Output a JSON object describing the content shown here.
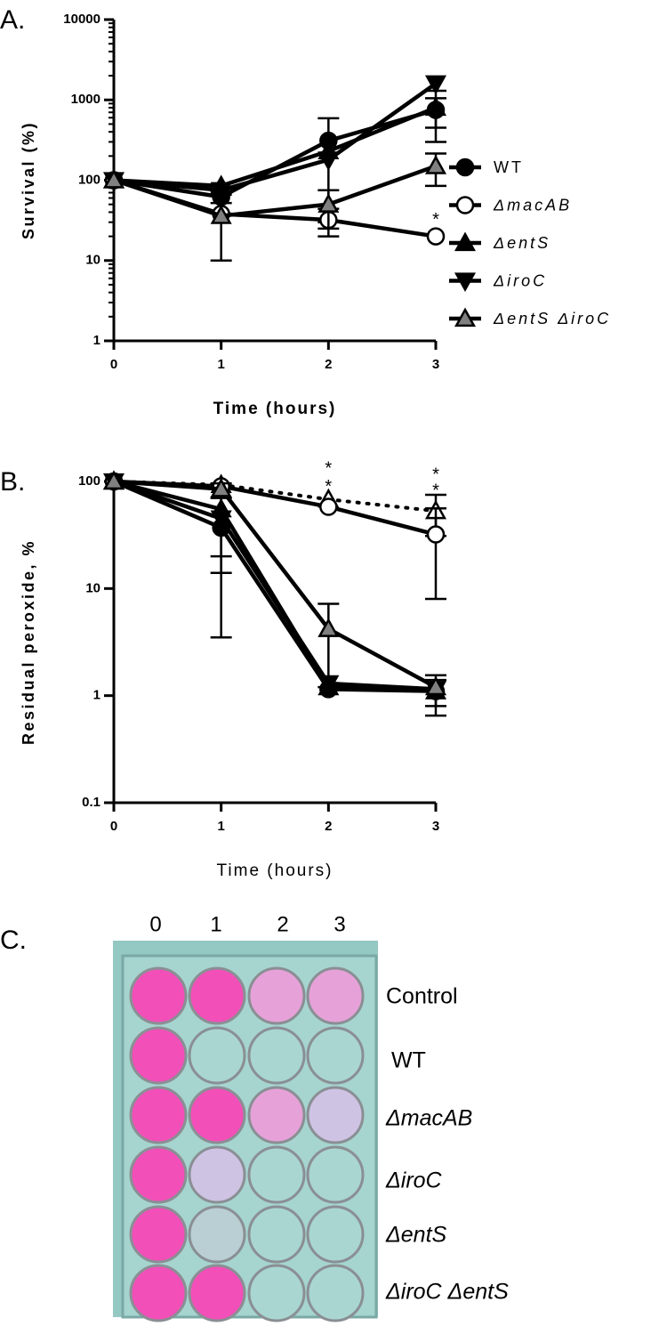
{
  "chart_data": [
    {
      "type": "line",
      "panel_label": "A.",
      "ylabel": "Survival (%)",
      "xlabel": "Time (hours)",
      "xlabel_bold": true,
      "log_y": true,
      "minor_ticks": true,
      "legend": "right",
      "x": [
        0,
        1,
        2,
        3
      ],
      "xlim": [
        0,
        3
      ],
      "xticks": [
        0,
        1,
        2,
        3
      ],
      "ylim": [
        1,
        10000
      ],
      "yticks": [
        1,
        10,
        100,
        1000,
        10000
      ],
      "series": [
        {
          "name": "WT",
          "color": "#000000",
          "marker": "circle",
          "marker_fill": "#000000",
          "values": [
            100,
            62,
            310,
            750
          ],
          "errors": [
            null,
            10,
            280,
            300
          ]
        },
        {
          "name": "ΔmacAB",
          "color": "#000000",
          "marker": "circle",
          "marker_fill": "#ffffff",
          "values": [
            100,
            38,
            32,
            20
          ],
          "errors": [
            null,
            28,
            12,
            null
          ]
        },
        {
          "name": "ΔentS",
          "color": "#000000",
          "marker": "triangle-up",
          "marker_fill": "#000000",
          "values": [
            100,
            85,
            230,
            800
          ],
          "errors": [
            null,
            null,
            null,
            500
          ]
        },
        {
          "name": "ΔiroC",
          "color": "#000000",
          "marker": "triangle-down",
          "marker_fill": "#000000",
          "values": [
            100,
            75,
            180,
            1600
          ],
          "errors": [
            null,
            null,
            null,
            null
          ]
        },
        {
          "name": "ΔentS ΔiroC",
          "color": "#000000",
          "marker": "triangle-up",
          "marker_fill": "#808080",
          "values": [
            100,
            36,
            50,
            150
          ],
          "errors": [
            null,
            null,
            25,
            65
          ]
        }
      ],
      "annotations": [
        {
          "text": "*",
          "x": 3,
          "y": 35
        }
      ]
    },
    {
      "type": "line",
      "panel_label": "B.",
      "ylabel": "Residual peroxide, %",
      "xlabel": "Time (hours)",
      "xlabel_bold": false,
      "log_y": true,
      "minor_ticks": false,
      "x": [
        0,
        1,
        2,
        3
      ],
      "xlim": [
        0,
        3
      ],
      "xticks": [
        0,
        1,
        2,
        3
      ],
      "ylim": [
        0.1,
        100
      ],
      "yticks": [
        0.1,
        1,
        10,
        100
      ],
      "series": [
        {
          "color": "#000000",
          "dashed": true,
          "marker": "triangle-up",
          "marker_fill": "#ffffff",
          "values": [
            100,
            93,
            68,
            53
          ],
          "errors": [
            null,
            null,
            null,
            22
          ]
        },
        {
          "color": "#000000",
          "marker": "circle",
          "marker_fill": "#000000",
          "values": [
            100,
            37,
            1.15,
            1.1
          ],
          "errors": [
            null,
            33.5,
            null,
            0.3
          ]
        },
        {
          "color": "#000000",
          "marker": "circle",
          "marker_fill": "#ffffff",
          "values": [
            100,
            90,
            58,
            32
          ],
          "errors": [
            null,
            null,
            null,
            24
          ]
        },
        {
          "color": "#000000",
          "marker": "triangle-up",
          "marker_fill": "#000000",
          "values": [
            100,
            55,
            1.2,
            1.1
          ],
          "errors": [
            null,
            41,
            null,
            0.45
          ]
        },
        {
          "color": "#000000",
          "marker": "triangle-down",
          "marker_fill": "#000000",
          "values": [
            100,
            45,
            1.3,
            1.15
          ],
          "errors": [
            null,
            25,
            null,
            null
          ]
        },
        {
          "color": "#000000",
          "marker": "triangle-up",
          "marker_fill": "#808080",
          "values": [
            100,
            85,
            4.2,
            1.2
          ],
          "errors": [
            null,
            null,
            3,
            null
          ]
        }
      ],
      "annotations": [
        {
          "text": "*",
          "x": 2,
          "y": 140
        },
        {
          "text": "*",
          "x": 2,
          "y": 95
        },
        {
          "text": "*",
          "x": 3,
          "y": 123
        },
        {
          "text": "*",
          "x": 3,
          "y": 87
        }
      ]
    }
  ],
  "panel_c": {
    "label": "C.",
    "columns": [
      "0",
      "1",
      "2",
      "3"
    ],
    "rows": [
      "Control",
      "WT",
      "ΔmacAB",
      "ΔiroC",
      "ΔentS",
      "ΔiroC ΔentS"
    ]
  }
}
